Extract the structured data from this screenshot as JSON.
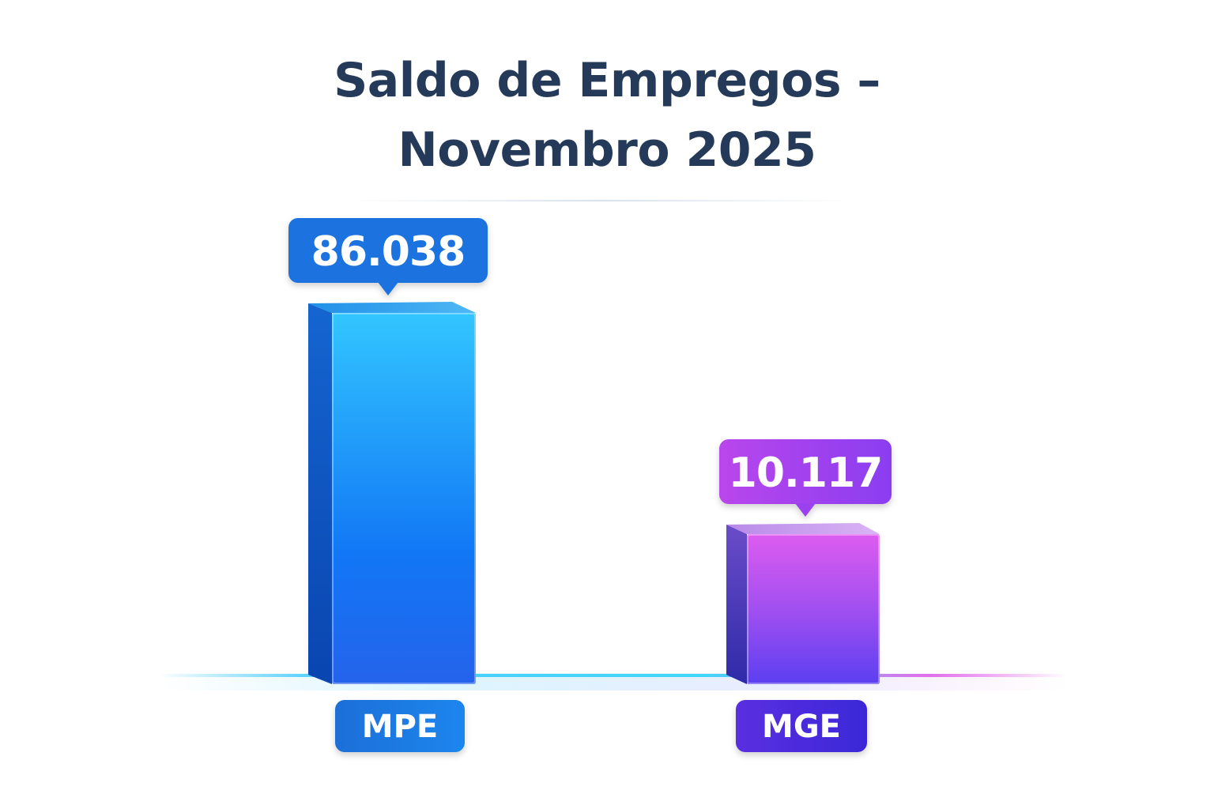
{
  "chart_data": {
    "type": "bar",
    "title_lines": [
      "Saldo de Empregos –",
      "Novembro 2025"
    ],
    "categories": [
      "MPE",
      "MGE"
    ],
    "values": [
      86038,
      10117
    ],
    "value_labels": [
      "86.038",
      "10.117"
    ],
    "xlabel": "",
    "ylabel": "",
    "grid": false,
    "legend": "none",
    "colors": {
      "MPE_top": "#33c6ff",
      "MPE_bottom": "#2563eb",
      "MPE_label": "#1a73e0",
      "MGE_top": "#dd5cf0",
      "MGE_bottom": "#5b3ff0",
      "MGE_label": "#4a2de0",
      "title": "#253a58"
    }
  }
}
